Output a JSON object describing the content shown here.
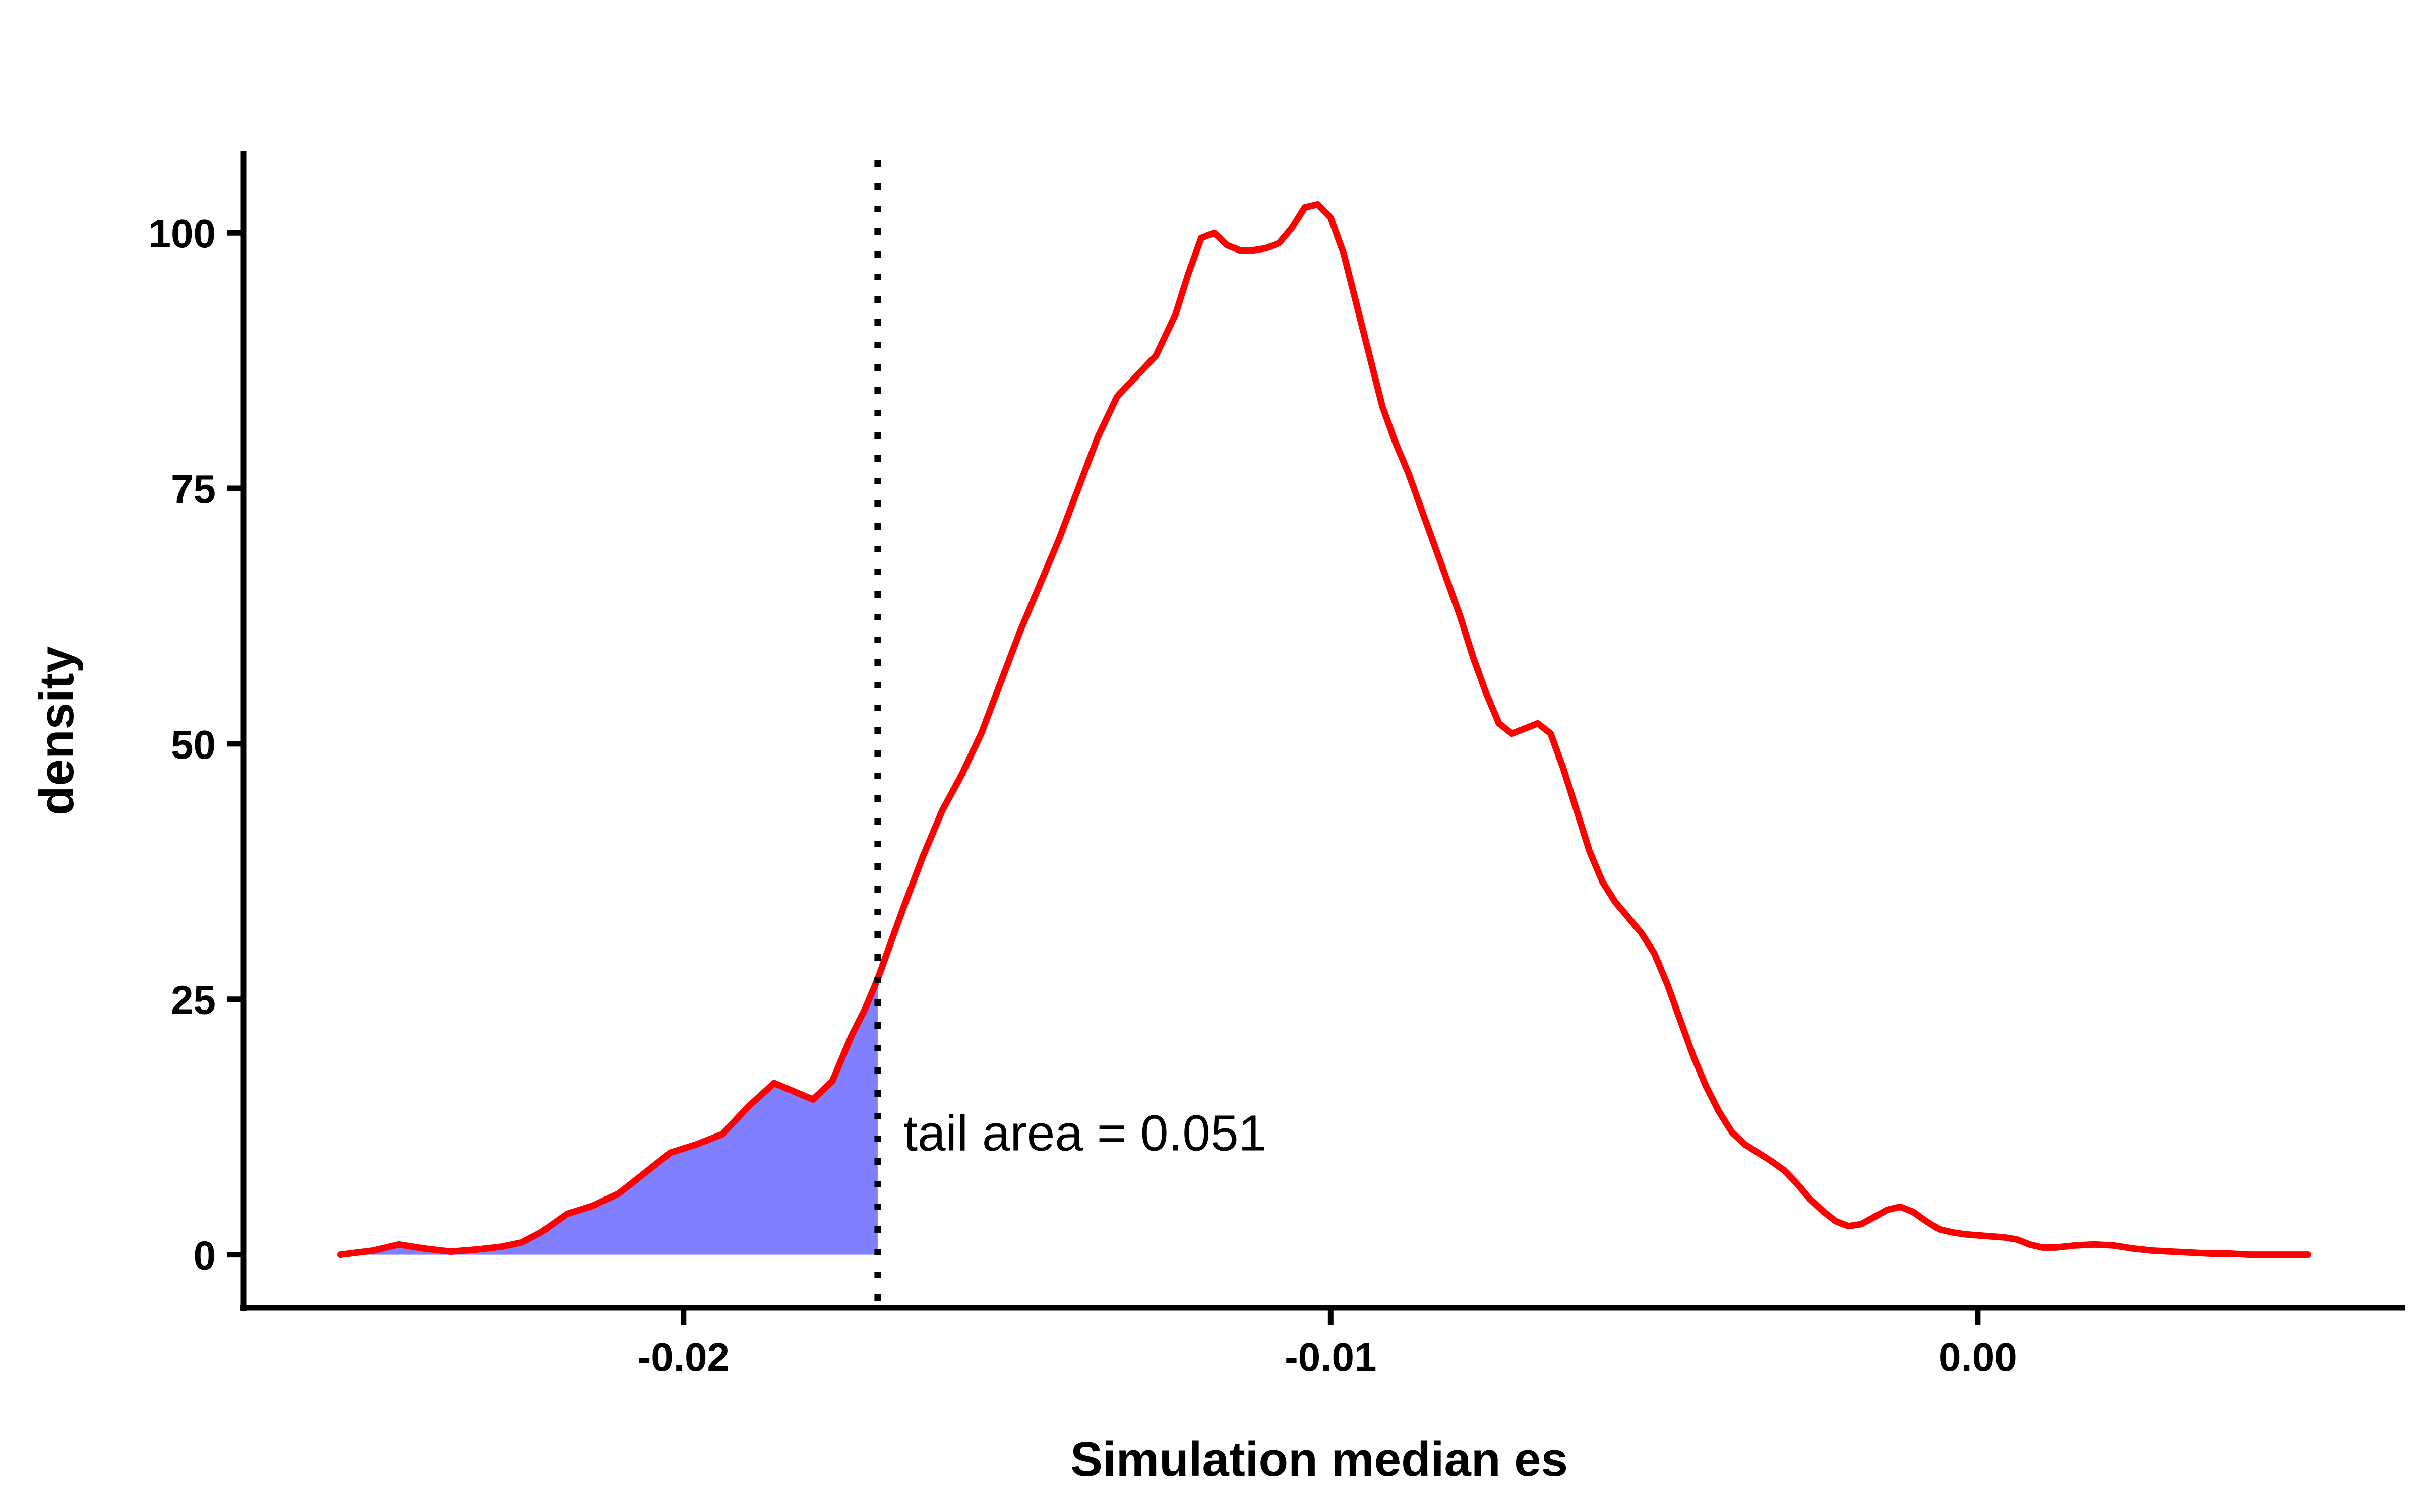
{
  "chart_data": {
    "type": "area",
    "title": "",
    "xlabel": "Simulation median es",
    "ylabel": "density",
    "xlim": [
      -0.0268,
      0.0066
    ],
    "ylim": [
      -5.2,
      108
    ],
    "x_ticks": [
      -0.02,
      -0.01,
      0.0
    ],
    "x_tick_labels": [
      "-0.02",
      "-0.01",
      "0.00"
    ],
    "y_ticks": [
      0,
      25,
      50,
      75,
      100
    ],
    "y_tick_labels": [
      "0",
      "25",
      "50",
      "75",
      "100"
    ],
    "grid": false,
    "legend": "none",
    "colors": {
      "density_line": "#ff0000",
      "tail_fill": "#8080ff",
      "threshold_line": "#000000"
    },
    "series": [
      {
        "x": [
          -0.0253,
          -0.0248,
          -0.0244,
          -0.024,
          -0.0236,
          -0.0232,
          -0.0228,
          -0.0225,
          -0.0222,
          -0.0218,
          -0.0214,
          -0.021,
          -0.0206,
          -0.0202,
          -0.0198,
          -0.0194,
          -0.019,
          -0.0186,
          -0.0183,
          -0.018,
          -0.0177,
          -0.0174,
          -0.0172,
          -0.017,
          -0.0168,
          -0.0166,
          -0.0163,
          -0.016,
          -0.0157,
          -0.0154,
          -0.0151,
          -0.0148,
          -0.0145,
          -0.0142,
          -0.0139,
          -0.0136,
          -0.0133,
          -0.013,
          -0.0127,
          -0.0124,
          -0.0122,
          -0.012,
          -0.0118,
          -0.0116,
          -0.0114,
          -0.0112,
          -0.011,
          -0.0108,
          -0.0106,
          -0.0104,
          -0.0102,
          -0.01,
          -0.0098,
          -0.0096,
          -0.0094,
          -0.0092,
          -0.009,
          -0.0088,
          -0.0086,
          -0.0084,
          -0.0082,
          -0.008,
          -0.0078,
          -0.0076,
          -0.0074,
          -0.0072,
          -0.007,
          -0.0068,
          -0.0066,
          -0.0064,
          -0.0062,
          -0.006,
          -0.0058,
          -0.0056,
          -0.0054,
          -0.0052,
          -0.005,
          -0.0048,
          -0.0046,
          -0.0044,
          -0.0042,
          -0.004,
          -0.0038,
          -0.0036,
          -0.0034,
          -0.0032,
          -0.003,
          -0.0028,
          -0.0026,
          -0.0024,
          -0.0022,
          -0.002,
          -0.0018,
          -0.0016,
          -0.0014,
          -0.0012,
          -0.001,
          -0.0008,
          -0.0006,
          -0.0004,
          -0.0002,
          0.0,
          0.0002,
          0.0004,
          0.0006,
          0.0008,
          0.001,
          0.0012,
          0.0015,
          0.0018,
          0.0021,
          0.0024,
          0.0027,
          0.003,
          0.0033,
          0.0036,
          0.0039,
          0.0042,
          0.0045,
          0.0048,
          0.0051
        ],
        "y": [
          0.0,
          0.4,
          1.0,
          0.6,
          0.3,
          0.5,
          0.8,
          1.2,
          2.2,
          4.0,
          4.8,
          6.0,
          8.0,
          10.0,
          10.8,
          11.8,
          14.5,
          16.8,
          16.0,
          15.2,
          17.0,
          21.5,
          24.0,
          27.0,
          30.5,
          34.0,
          39.0,
          43.5,
          47.0,
          51.0,
          56.0,
          61.0,
          65.5,
          70.0,
          75.0,
          80.0,
          84.0,
          86.0,
          88.0,
          92.0,
          96.0,
          99.5,
          100.0,
          98.8,
          98.3,
          98.3,
          98.5,
          99.0,
          100.5,
          102.5,
          102.8,
          101.5,
          98.0,
          93.0,
          88.0,
          83.0,
          79.5,
          76.5,
          73.0,
          69.5,
          66.0,
          62.5,
          58.5,
          55.0,
          52.0,
          51.0,
          51.5,
          52.0,
          51.0,
          47.5,
          43.5,
          39.5,
          36.5,
          34.5,
          33.0,
          31.5,
          29.5,
          26.5,
          23.0,
          19.5,
          16.5,
          14.0,
          12.0,
          10.8,
          10.0,
          9.2,
          8.3,
          7.0,
          5.5,
          4.3,
          3.3,
          2.8,
          3.0,
          3.7,
          4.4,
          4.7,
          4.2,
          3.3,
          2.5,
          2.2,
          2.0,
          1.9,
          1.8,
          1.7,
          1.5,
          1.0,
          0.7,
          0.7,
          0.9,
          1.0,
          0.9,
          0.6,
          0.4,
          0.3,
          0.2,
          0.1,
          0.1,
          0.0,
          0.0,
          0.0,
          0.0
        ]
      }
    ],
    "threshold_x": -0.017,
    "annotations": [
      {
        "text": "tail area =  0.051",
        "x": -0.0166,
        "y": 12
      }
    ]
  }
}
